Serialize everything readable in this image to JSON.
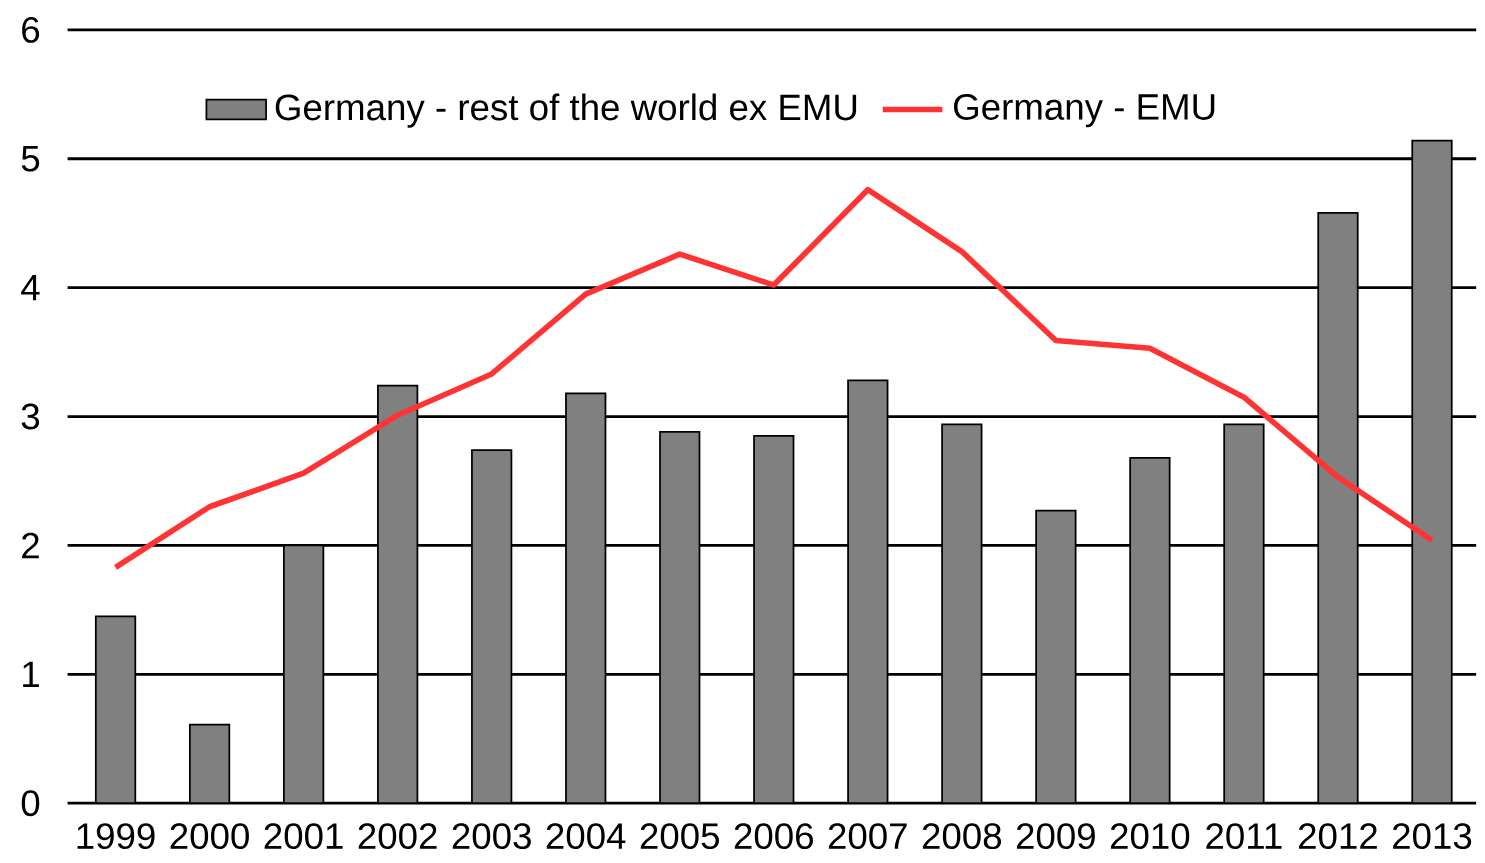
{
  "chart_data": {
    "type": "bar",
    "categories": [
      "1999",
      "2000",
      "2001",
      "2002",
      "2003",
      "2004",
      "2005",
      "2006",
      "2007",
      "2008",
      "2009",
      "2010",
      "2011",
      "2012",
      "2013"
    ],
    "series": [
      {
        "name": "Germany - rest of the world ex EMU",
        "color": "#808080",
        "values": [
          1.45,
          0.61,
          2.0,
          3.24,
          2.74,
          3.18,
          2.88,
          2.85,
          3.28,
          2.94,
          2.27,
          2.68,
          2.94,
          4.58,
          5.14
        ]
      },
      {
        "name": "Germany - EMU",
        "type": "line",
        "color": "#ff3333",
        "values": [
          1.83,
          2.3,
          2.56,
          3.01,
          3.33,
          3.95,
          4.26,
          4.02,
          4.76,
          4.28,
          3.59,
          3.53,
          3.15,
          2.53,
          2.04
        ]
      }
    ],
    "ylim": [
      0,
      6
    ],
    "yticks": [
      0,
      1,
      2,
      3,
      4,
      5,
      6
    ],
    "grid": "y",
    "legend": "top"
  }
}
